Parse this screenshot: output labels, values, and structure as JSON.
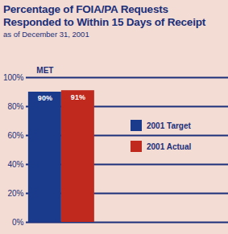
{
  "chart_data": {
    "type": "bar",
    "title": "Percentage of FOIA/PA Requests Responded to Within 15 Days of Receipt",
    "subtitle": "as of December 31, 2001",
    "categories": [
      null
    ],
    "series": [
      {
        "name": "2001 Target",
        "color": "#1a3a8c",
        "values": [
          90
        ],
        "value_labels": [
          "90%"
        ]
      },
      {
        "name": "2001 Actual",
        "color": "#c0291d",
        "values": [
          91
        ],
        "value_labels": [
          "91%"
        ]
      }
    ],
    "annotation": "MET",
    "ylim": [
      0,
      100
    ],
    "yticks": [
      {
        "value": 0,
        "label": "0%"
      },
      {
        "value": 20,
        "label": "20%"
      },
      {
        "value": 40,
        "label": "40%"
      },
      {
        "value": 60,
        "label": "60%"
      },
      {
        "value": 80,
        "label": "80%"
      },
      {
        "value": 100,
        "label": "100%"
      }
    ],
    "grid": true,
    "legend": "right",
    "data_labels": true
  }
}
